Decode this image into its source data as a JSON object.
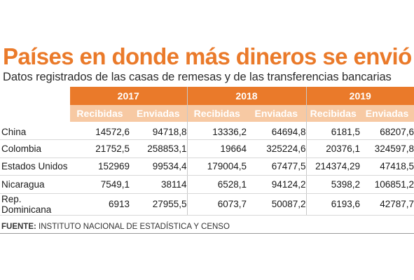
{
  "title": "Países en donde más dineros se envió",
  "subtitle": "Datos registrados de las casas de remesas y de las transferencias bancarias",
  "years": [
    "2017",
    "2018",
    "2019"
  ],
  "subheaders": {
    "received": "Recibidas",
    "sent": "Enviadas"
  },
  "rows": [
    {
      "country": "China",
      "values": [
        "14572,6",
        "94718,8",
        "13336,2",
        "64694,8",
        "6181,5",
        "68207,6"
      ]
    },
    {
      "country": "Colombia",
      "values": [
        "21752,5",
        "258853,1",
        "19664",
        "325224,6",
        "20376,1",
        "324597,8"
      ]
    },
    {
      "country": "Estados Unidos",
      "values": [
        "152969",
        "99534,4",
        "179004,5",
        "67477,5",
        "214374,29",
        "47418,5"
      ]
    },
    {
      "country": "Nicaragua",
      "values": [
        "7549,1",
        "38114",
        "6528,1",
        "94124,2",
        "5398,2",
        "106851,2"
      ]
    },
    {
      "country": "Rep. Dominicana",
      "values": [
        "6913",
        "27955,5",
        "6073,7",
        "50087,2",
        "6193,6",
        "42787,7"
      ]
    }
  ],
  "source": {
    "label": "FUENTE:",
    "text": "INSTITUTO NACIONAL DE ESTADÍSTICA Y CENSO"
  },
  "colors": {
    "accent": "#ea7a2a",
    "accent_light": "#f7c9a3"
  }
}
